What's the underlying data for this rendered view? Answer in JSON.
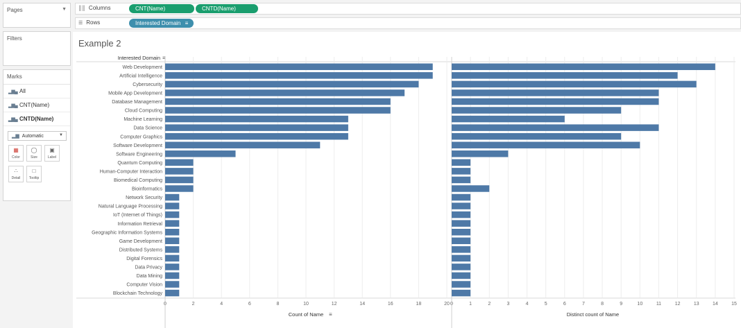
{
  "left_panel": {
    "pages_title": "Pages",
    "filters_title": "Filters",
    "marks_title": "Marks",
    "marks_items": [
      "All",
      "CNT(Name)",
      "CNTD(Name)"
    ],
    "mark_type": "Automatic",
    "mark_buttons": [
      "Color",
      "Size",
      "Label",
      "Detail",
      "Tooltip"
    ]
  },
  "shelves": {
    "columns_label": "Columns",
    "columns_pills": [
      "CNT(Name)",
      "CNTD(Name)"
    ],
    "rows_label": "Rows",
    "rows_pill": "Interested Domain"
  },
  "viz": {
    "title": "Example 2",
    "row_header": "Interested Domain"
  },
  "chart_data": {
    "type": "bar",
    "orientation": "horizontal",
    "categories": [
      "Web Development",
      "Artificial Intelligence",
      "Cybersecurity",
      "Mobile App Development",
      "Database Management",
      "Cloud Computing",
      "Machine Learning",
      "Data Science",
      "Computer Graphics",
      "Software Development",
      "Software Engineering",
      "Quantum Computing",
      "Human-Computer Interaction",
      "Biomedical Computing",
      "Bioinformatics",
      "Network Security",
      "Natural Language Processing",
      "IoT (Internet of Things)",
      "Information Retrieval",
      "Geographic Information Systems",
      "Game Development",
      "Distributed Systems",
      "Digital Forensics",
      "Data Privacy",
      "Data Mining",
      "Computer Vision",
      "Blockchain Technology"
    ],
    "panes": [
      {
        "xlabel": "Count of Name",
        "xlim": [
          0,
          20
        ],
        "ticks": [
          0,
          2,
          4,
          6,
          8,
          10,
          12,
          14,
          16,
          18,
          20
        ],
        "values": [
          19,
          19,
          18,
          17,
          16,
          16,
          13,
          13,
          13,
          11,
          5,
          2,
          2,
          2,
          2,
          1,
          1,
          1,
          1,
          1,
          1,
          1,
          1,
          1,
          1,
          1,
          1
        ]
      },
      {
        "xlabel": "Distinct count of Name",
        "xlim": [
          0,
          15
        ],
        "ticks": [
          0,
          1,
          2,
          3,
          4,
          5,
          6,
          7,
          8,
          9,
          10,
          11,
          12,
          13,
          14,
          15
        ],
        "values": [
          14,
          12,
          13,
          11,
          11,
          9,
          6,
          11,
          9,
          10,
          3,
          1,
          1,
          1,
          2,
          1,
          1,
          1,
          1,
          1,
          1,
          1,
          1,
          1,
          1,
          1,
          1
        ]
      }
    ],
    "bar_color": "#4e79a7",
    "grid": true
  }
}
